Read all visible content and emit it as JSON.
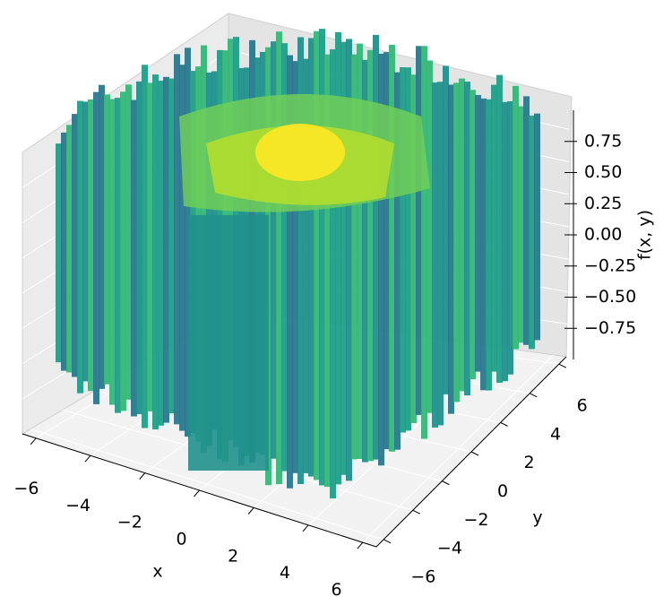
{
  "chart_data": {
    "type": "surface",
    "xlabel": "x",
    "ylabel": "y",
    "zlabel": "f(x, y)",
    "colormap": "viridis",
    "xlim": [
      -6.5,
      6.5
    ],
    "xticks": [
      {
        "value": -6,
        "label": "−6"
      },
      {
        "value": -4,
        "label": "−4"
      },
      {
        "value": -2,
        "label": "−2"
      },
      0,
      2,
      4,
      6
    ],
    "ylim": [
      -6.5,
      6.5
    ],
    "yticks": [
      {
        "value": -6,
        "label": "−6"
      },
      {
        "value": -4,
        "label": "−4"
      },
      {
        "value": -2,
        "label": "−2"
      },
      0,
      2,
      4,
      6
    ],
    "zlim": [
      -1,
      1
    ],
    "zticks": [
      {
        "value": -0.75,
        "label": "−0.75"
      },
      {
        "value": -0.5,
        "label": "−0.50"
      },
      {
        "value": -0.25,
        "label": "−0.25"
      },
      {
        "value": 0,
        "label": "0.00"
      },
      0.25,
      {
        "value": 0.5,
        "label": "0.50"
      },
      0.75
    ],
    "grid": true
  }
}
